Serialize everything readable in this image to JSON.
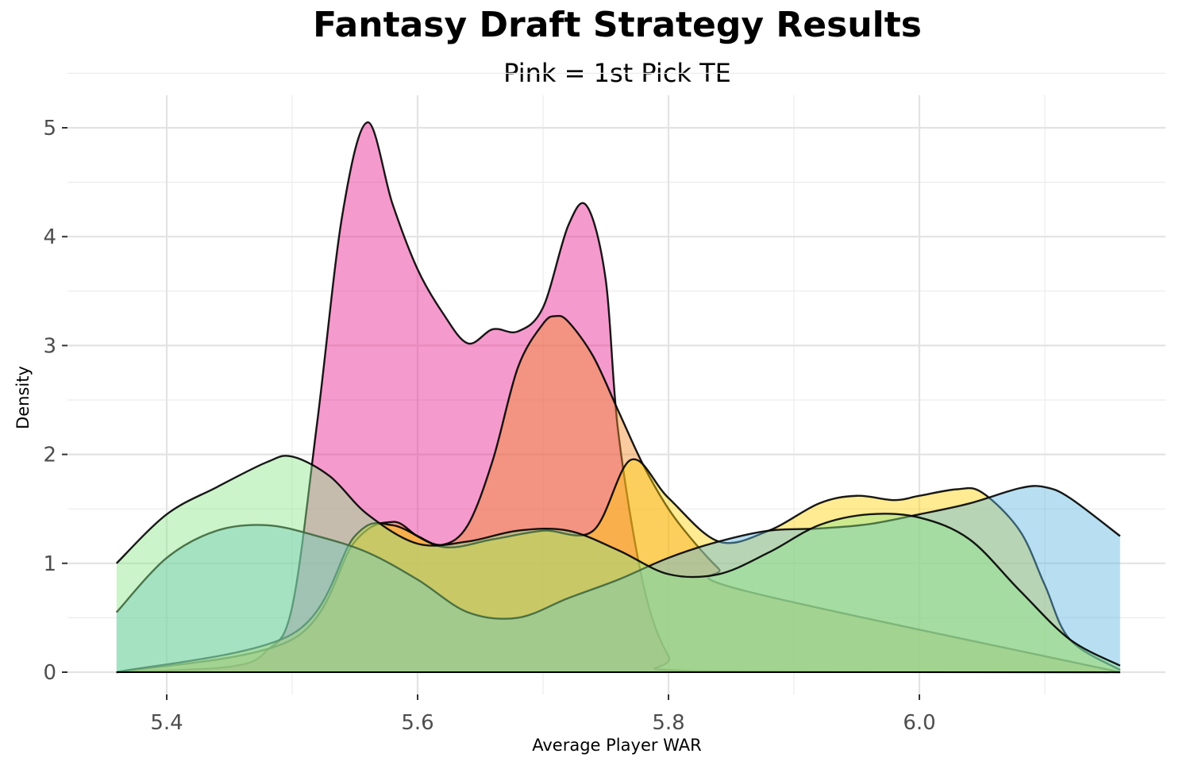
{
  "chart_data": {
    "type": "area",
    "title": "Fantasy Draft Strategy Results",
    "subtitle": "Pink = 1st Pick TE",
    "xlabel": "Average Player WAR",
    "ylabel": "Density",
    "xlim": [
      5.34,
      6.19
    ],
    "ylim": [
      -0.2,
      5.3
    ],
    "x_ticks": [
      5.4,
      5.6,
      5.8,
      6.0
    ],
    "y_ticks": [
      0,
      1,
      2,
      3,
      4,
      5
    ],
    "grid": true,
    "legend": "none",
    "series": [
      {
        "color": "#e8208f",
        "x": [
          5.36,
          5.45,
          5.48,
          5.5,
          5.52,
          5.54,
          5.56,
          5.58,
          5.6,
          5.62,
          5.64,
          5.66,
          5.68,
          5.7,
          5.72,
          5.735,
          5.75,
          5.76,
          5.78,
          5.8,
          5.82,
          6.16
        ],
        "y": [
          0,
          0.05,
          0.2,
          0.6,
          2.3,
          4.2,
          5.05,
          4.3,
          3.7,
          3.3,
          3.02,
          3.15,
          3.13,
          3.35,
          4.1,
          4.28,
          3.6,
          2.2,
          0.8,
          0.15,
          0.01,
          0
        ]
      },
      {
        "color": "#f28c28",
        "x": [
          5.36,
          5.5,
          5.55,
          5.58,
          5.6,
          5.62,
          5.64,
          5.66,
          5.68,
          5.7,
          5.71,
          5.72,
          5.74,
          5.76,
          5.78,
          5.8,
          5.82,
          5.84,
          5.86,
          6.16
        ],
        "y": [
          0,
          0.3,
          1.2,
          1.38,
          1.25,
          1.17,
          1.35,
          1.95,
          2.8,
          3.2,
          3.27,
          3.22,
          2.9,
          2.4,
          1.9,
          1.5,
          1.2,
          0.95,
          0.75,
          0
        ]
      },
      {
        "color": "#ffd20a",
        "x": [
          5.36,
          5.5,
          5.55,
          5.58,
          5.62,
          5.66,
          5.7,
          5.74,
          5.77,
          5.8,
          5.84,
          5.88,
          5.92,
          5.95,
          5.98,
          6.0,
          6.03,
          6.05,
          6.08,
          6.1,
          6.12,
          6.16
        ],
        "y": [
          0,
          0.35,
          1.25,
          1.35,
          1.15,
          1.22,
          1.3,
          1.3,
          1.95,
          1.6,
          1.2,
          1.3,
          1.55,
          1.62,
          1.58,
          1.62,
          1.68,
          1.65,
          1.3,
          0.8,
          0.3,
          0.02
        ]
      },
      {
        "color": "#5fb8e0",
        "x": [
          5.36,
          5.4,
          5.44,
          5.48,
          5.52,
          5.56,
          5.6,
          5.64,
          5.68,
          5.72,
          5.76,
          5.8,
          5.84,
          5.88,
          5.92,
          5.96,
          6.0,
          6.04,
          6.08,
          6.1,
          6.12,
          6.16
        ],
        "y": [
          0.55,
          1.05,
          1.3,
          1.35,
          1.25,
          1.1,
          0.85,
          0.55,
          0.5,
          0.68,
          0.85,
          1.05,
          1.2,
          1.3,
          1.32,
          1.36,
          1.45,
          1.55,
          1.69,
          1.7,
          1.6,
          1.25
        ]
      },
      {
        "color": "#8ee68a",
        "x": [
          5.36,
          5.4,
          5.44,
          5.48,
          5.5,
          5.53,
          5.56,
          5.6,
          5.64,
          5.68,
          5.72,
          5.76,
          5.8,
          5.84,
          5.88,
          5.92,
          5.96,
          6.0,
          6.04,
          6.08,
          6.12,
          6.16
        ],
        "y": [
          1.0,
          1.45,
          1.7,
          1.93,
          1.98,
          1.8,
          1.45,
          1.18,
          1.2,
          1.3,
          1.3,
          1.12,
          0.9,
          0.9,
          1.1,
          1.35,
          1.45,
          1.42,
          1.22,
          0.75,
          0.3,
          0.06
        ]
      }
    ]
  }
}
